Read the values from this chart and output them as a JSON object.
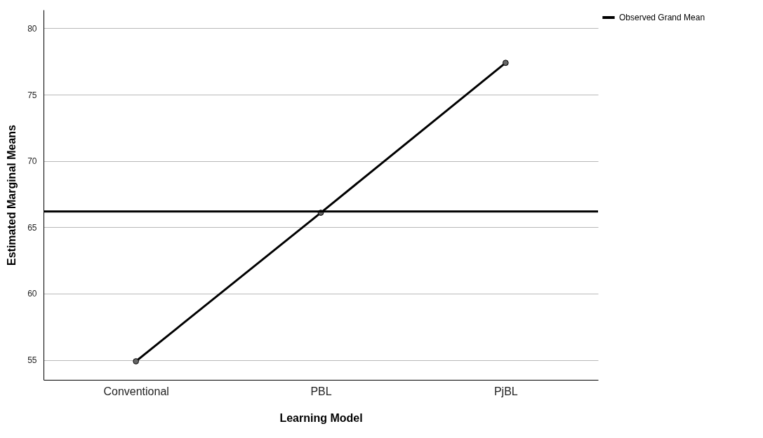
{
  "chart_data": {
    "type": "line",
    "xlabel": "Learning Model",
    "ylabel": "Estimated Marginal Means",
    "categories": [
      "Conventional",
      "PBL",
      "PjBL"
    ],
    "series": [
      {
        "color": "#000000",
        "values": [
          54.9,
          66.1,
          77.4
        ]
      }
    ],
    "ylim": [
      53.5,
      81.4
    ],
    "yticks": [
      55,
      60,
      65,
      70,
      75,
      80
    ],
    "grid": "y",
    "marker": "circle",
    "line_style": "solid",
    "legend": "top right",
    "ref_lines": [
      {
        "axis": "y",
        "value": 66.2,
        "label": "Observed Grand Mean",
        "color": "#000000"
      }
    ]
  }
}
